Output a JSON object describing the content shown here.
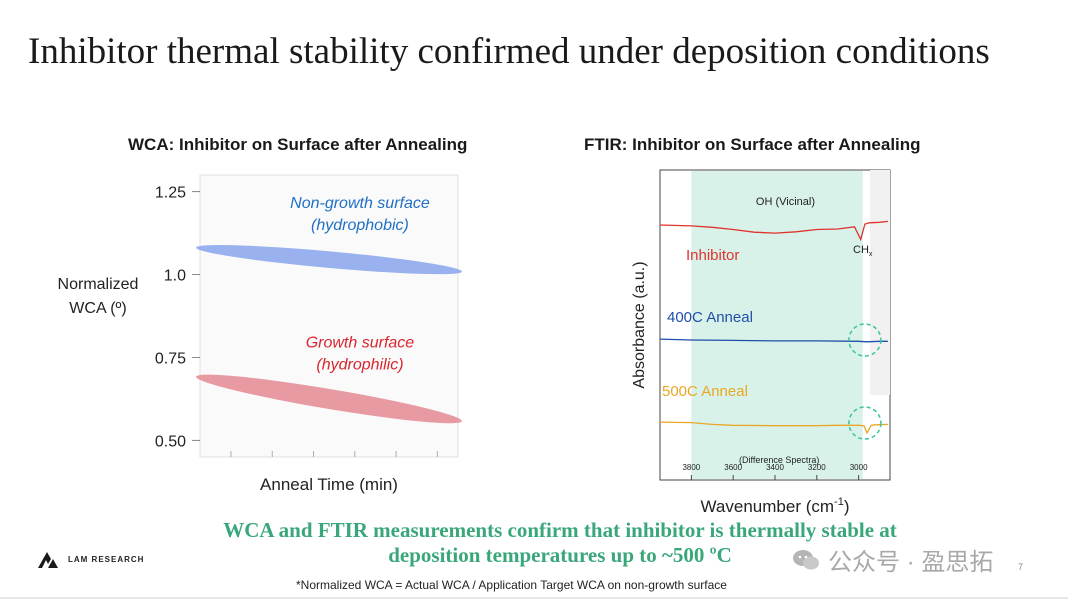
{
  "slide": {
    "title": "Inhibitor thermal stability confirmed under deposition conditions",
    "conclusion_line1": "WCA and FTIR measurements confirm that inhibitor is thermally stable at",
    "conclusion_line2": "deposition temperatures up to ~500 ºC",
    "footnote": "*Normalized WCA = Actual WCA / Application Target WCA on non-growth surface",
    "logo_text": "LAM RESEARCH",
    "watermark": "公众号 · 盈思拓",
    "page_number": "7"
  },
  "colors": {
    "accent_green": "#3aa77a",
    "blue_band": "#8ea8ec",
    "pink_band": "#e58f99",
    "ftir_highlight": "#d8f2ea"
  },
  "chart_data": [
    {
      "type": "area",
      "title": "WCA: Inhibitor on Surface after Annealing",
      "xlabel": "Anneal Time (min)",
      "ylabel_line1": "Normalized",
      "ylabel_line2": "WCA (º)",
      "ylim": [
        0.45,
        1.3
      ],
      "yticks": [
        0.5,
        0.75,
        1.0,
        1.25
      ],
      "ytick_labels": [
        "0.50",
        "0.75",
        "1.0",
        "1.25"
      ],
      "x": [
        0,
        1
      ],
      "series": [
        {
          "name": "Non-growth surface (hydrophobic)",
          "label_line1": "Non-growth surface",
          "label_line2": "(hydrophobic)",
          "color": "#1f6fc5",
          "center": [
            1.08,
            1.01
          ],
          "band_halfwidth": 0.025
        },
        {
          "name": "Growth surface (hydrophilic)",
          "label_line1": "Growth surface",
          "label_line2": "(hydrophilic)",
          "color": "#d9262f",
          "center": [
            0.69,
            0.56
          ],
          "band_halfwidth": 0.03
        }
      ]
    },
    {
      "type": "line",
      "title": "FTIR: Inhibitor on Surface after Annealing",
      "xlabel": "Wavenumber (cm",
      "xlabel_sup": "-1",
      "xlabel_end": ")",
      "ylabel": "Absorbance (a.u.)",
      "x_reversed": true,
      "xlim": [
        3950,
        2850
      ],
      "xticks": [
        3800,
        3600,
        3400,
        3200,
        3000
      ],
      "xtick_labels": [
        "3800",
        "3600",
        "3400",
        "3200",
        "3000"
      ],
      "highlight_range": [
        3800,
        2980
      ],
      "annotations": {
        "oh": "OH (Vicinal)",
        "ch": "CH",
        "ch_sub": "x",
        "diff": "(Difference Spectra)"
      },
      "series": [
        {
          "name": "Inhibitor",
          "color": "#e0322f",
          "x": [
            3950,
            3800,
            3700,
            3600,
            3500,
            3400,
            3300,
            3200,
            3100,
            3020,
            2990,
            2970,
            2950,
            2900,
            2860
          ],
          "y": [
            0.0,
            -0.02,
            -0.05,
            -0.1,
            -0.16,
            -0.18,
            -0.15,
            -0.1,
            -0.09,
            -0.04,
            -0.32,
            0.02,
            0.05,
            0.06,
            0.08
          ]
        },
        {
          "name": "400C Anneal",
          "color": "#1f4fa8",
          "x": [
            3950,
            3800,
            3600,
            3400,
            3200,
            3000,
            2960,
            2900,
            2860
          ],
          "y": [
            0.02,
            0.0,
            -0.01,
            -0.02,
            -0.02,
            -0.03,
            -0.04,
            -0.03,
            -0.03
          ]
        },
        {
          "name": "500C Anneal",
          "color": "#e8a825",
          "x": [
            3950,
            3800,
            3700,
            3600,
            3400,
            3200,
            3100,
            3000,
            2975,
            2960,
            2940,
            2920,
            2860
          ],
          "y": [
            0.02,
            0.01,
            -0.03,
            -0.05,
            -0.06,
            -0.06,
            -0.05,
            -0.05,
            -0.06,
            -0.22,
            -0.05,
            -0.04,
            -0.03
          ]
        }
      ]
    }
  ]
}
